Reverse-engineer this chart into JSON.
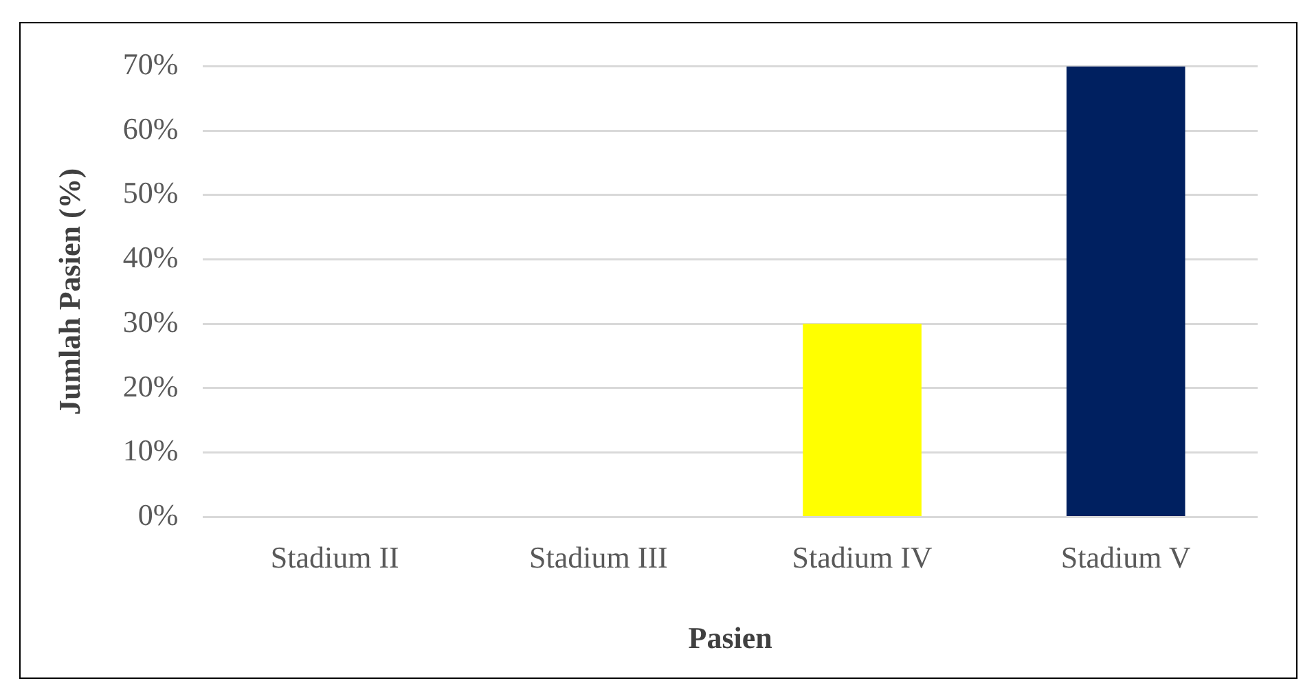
{
  "chart_data": {
    "type": "bar",
    "xlabel": "Pasien",
    "ylabel": "Jumlah Pasien (%)",
    "categories": [
      "Stadium II",
      "Stadium III",
      "Stadium IV",
      "Stadium V"
    ],
    "values": [
      0,
      0,
      30,
      70
    ],
    "colors": [
      "#00873c",
      "#00873c",
      "#ffff00",
      "#002060"
    ],
    "ylim": [
      0,
      70
    ],
    "yticks": [
      {
        "value": 0,
        "label": "0%"
      },
      {
        "value": 10,
        "label": "10%"
      },
      {
        "value": 20,
        "label": "20%"
      },
      {
        "value": 30,
        "label": "30%"
      },
      {
        "value": 40,
        "label": "40%"
      },
      {
        "value": 50,
        "label": "50%"
      },
      {
        "value": 60,
        "label": "60%"
      },
      {
        "value": 70,
        "label": "70%"
      }
    ],
    "grid": "y",
    "legend": false
  }
}
